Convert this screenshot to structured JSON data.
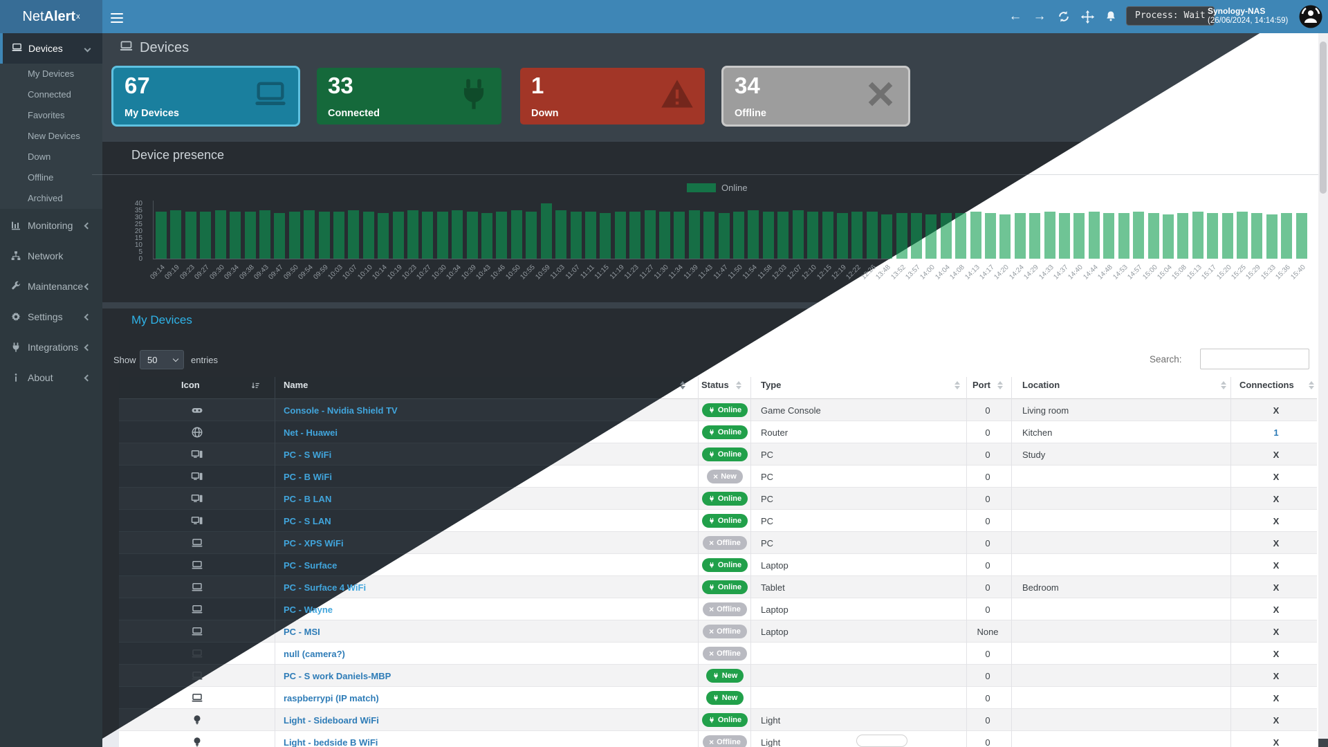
{
  "navbar": {
    "brand_prefix": "Net",
    "brand_bold": "Alert",
    "brand_sup": "x",
    "process_label": "Process: Wait",
    "server_name": "Synology-NAS",
    "server_datetime": "(26/06/2024, 14:14:59)"
  },
  "sidebar": {
    "devices_label": "Devices",
    "submenu": [
      "My Devices",
      "Connected",
      "Favorites",
      "New Devices",
      "Down",
      "Offline",
      "Archived"
    ],
    "sections": [
      {
        "label": "Monitoring",
        "icon": "chart",
        "chevron": true
      },
      {
        "label": "Network",
        "icon": "network",
        "chevron": false
      },
      {
        "label": "Maintenance",
        "icon": "wrench",
        "chevron": true
      },
      {
        "label": "Settings",
        "icon": "gear",
        "chevron": true
      },
      {
        "label": "Integrations",
        "icon": "plug",
        "chevron": true
      },
      {
        "label": "About",
        "icon": "info",
        "chevron": true
      }
    ]
  },
  "page": {
    "title": "Devices"
  },
  "stats": [
    {
      "value": "67",
      "label": "My Devices",
      "color": "#1a7f9e",
      "icon": "laptop",
      "ring": "#5fc1e0"
    },
    {
      "value": "33",
      "label": "Connected",
      "color": "#15693b",
      "icon": "plug",
      "ring": ""
    },
    {
      "value": "1",
      "label": "Down",
      "color": "#a23627",
      "icon": "warning",
      "ring": ""
    },
    {
      "value": "34",
      "label": "Offline",
      "color": "#9d9d9d",
      "icon": "x",
      "ring": "#c9c9c9"
    }
  ],
  "chart_data": {
    "type": "bar",
    "title": "Device presence",
    "legend": [
      "Online"
    ],
    "legend_position": "top-center",
    "ylim": [
      0,
      40
    ],
    "yticks": [
      40,
      35,
      30,
      25,
      20,
      15,
      10,
      5,
      0
    ],
    "grid": false,
    "bar_color_dark_theme": "#166e45",
    "bar_color_light_theme": "#6fc495",
    "categories": [
      "09:14",
      "09:19",
      "09:23",
      "09:27",
      "09:30",
      "09:34",
      "09:38",
      "09:43",
      "09:47",
      "09:50",
      "09:54",
      "09:59",
      "10:03",
      "10:07",
      "10:10",
      "10:14",
      "10:19",
      "10:23",
      "10:27",
      "10:30",
      "10:34",
      "10:39",
      "10:43",
      "10:46",
      "10:50",
      "10:55",
      "10:59",
      "11:03",
      "11:07",
      "11:11",
      "11:15",
      "11:19",
      "11:23",
      "11:27",
      "11:30",
      "11:34",
      "11:39",
      "11:43",
      "11:47",
      "11:50",
      "11:54",
      "11:58",
      "12:03",
      "12:07",
      "12:10",
      "12:15",
      "12:19",
      "12:22",
      "12:26",
      "13:48",
      "13:52",
      "13:57",
      "14:00",
      "14:04",
      "14:08",
      "14:13",
      "14:17",
      "14:20",
      "14:24",
      "14:29",
      "14:33",
      "14:37",
      "14:40",
      "14:44",
      "14:48",
      "14:53",
      "14:57",
      "15:00",
      "15:04",
      "15:08",
      "15:13",
      "15:17",
      "15:20",
      "15:25",
      "15:29",
      "15:33",
      "15:36",
      "15:40"
    ],
    "values": [
      34,
      35,
      34,
      34,
      35,
      34,
      34,
      35,
      33,
      34,
      35,
      34,
      34,
      35,
      34,
      33,
      34,
      35,
      34,
      34,
      35,
      34,
      33,
      34,
      35,
      34,
      40,
      35,
      34,
      34,
      33,
      34,
      34,
      35,
      34,
      34,
      35,
      34,
      33,
      34,
      35,
      34,
      34,
      35,
      34,
      34,
      33,
      34,
      34,
      32,
      33,
      33,
      32,
      33,
      33,
      34,
      33,
      32,
      33,
      33,
      34,
      33,
      33,
      34,
      33,
      33,
      34,
      33,
      32,
      33,
      34,
      33,
      33,
      34,
      33,
      32,
      33,
      33
    ]
  },
  "table": {
    "title": "My Devices",
    "show_label": "Show",
    "entries_label": "entries",
    "page_size": "50",
    "search_label": "Search:",
    "search_value": "",
    "columns": [
      "Icon",
      "Name",
      "Status",
      "Type",
      "Port",
      "Location",
      "Connections"
    ],
    "rows": [
      {
        "icon": "gamepad",
        "name": "Console - Nvidia Shield TV",
        "status": "Online",
        "status_variant": "online",
        "type": "Game Console",
        "port": "0",
        "location": "Living room",
        "connections": "X"
      },
      {
        "icon": "globe",
        "name": "Net - Huawei",
        "status": "Online",
        "status_variant": "online",
        "type": "Router",
        "port": "0",
        "location": "Kitchen",
        "connections": "1"
      },
      {
        "icon": "desktop",
        "name": "PC - S WiFi",
        "status": "Online",
        "status_variant": "online",
        "type": "PC",
        "port": "0",
        "location": "Study",
        "connections": "X"
      },
      {
        "icon": "desktop",
        "name": "PC - B WiFi",
        "status": "New",
        "status_variant": "new-gray",
        "type": "PC",
        "port": "0",
        "location": "",
        "connections": "X"
      },
      {
        "icon": "desktop",
        "name": "PC - B LAN",
        "status": "Online",
        "status_variant": "online",
        "type": "PC",
        "port": "0",
        "location": "",
        "connections": "X"
      },
      {
        "icon": "desktop",
        "name": "PC - S LAN",
        "status": "Online",
        "status_variant": "online",
        "type": "PC",
        "port": "0",
        "location": "",
        "connections": "X"
      },
      {
        "icon": "laptop",
        "name": "PC - XPS WiFi",
        "status": "Offline",
        "status_variant": "offline",
        "type": "PC",
        "port": "0",
        "location": "",
        "connections": "X"
      },
      {
        "icon": "laptop",
        "name": "PC - Surface",
        "status": "Online",
        "status_variant": "online",
        "type": "Laptop",
        "port": "0",
        "location": "",
        "connections": "X"
      },
      {
        "icon": "laptop",
        "name": "PC - Surface 4 WiFi",
        "status": "Online",
        "status_variant": "online",
        "type": "Tablet",
        "port": "0",
        "location": "Bedroom",
        "connections": "X"
      },
      {
        "icon": "laptop",
        "name": "PC - Wayne",
        "status": "Offline",
        "status_variant": "offline",
        "type": "Laptop",
        "port": "0",
        "location": "",
        "connections": "X"
      },
      {
        "icon": "laptop",
        "name": "PC - MSI",
        "status": "Offline",
        "status_variant": "offline",
        "type": "Laptop",
        "port": "None",
        "location": "",
        "connections": "X"
      },
      {
        "icon": "laptop",
        "name": "null (camera?)",
        "status": "Offline",
        "status_variant": "offline",
        "type": "",
        "port": "0",
        "location": "",
        "connections": "X"
      },
      {
        "icon": "laptop",
        "name": "PC - S work Daniels-MBP",
        "status": "New",
        "status_variant": "new-green",
        "type": "",
        "port": "0",
        "location": "",
        "connections": "X"
      },
      {
        "icon": "laptop",
        "name": "raspberrypi (IP match)",
        "status": "New",
        "status_variant": "new-green",
        "type": "",
        "port": "0",
        "location": "",
        "connections": "X"
      },
      {
        "icon": "bulb",
        "name": "Light - Sideboard WiFi",
        "status": "Online",
        "status_variant": "online",
        "type": "Light",
        "port": "0",
        "location": "",
        "connections": "X"
      },
      {
        "icon": "bulb",
        "name": "Light - bedside B WiFi",
        "status": "Offline",
        "status_variant": "offline",
        "type": "Light",
        "port": "0",
        "location": "",
        "connections": "X"
      }
    ]
  },
  "colors": {
    "navbar": "#3e86b6",
    "navbar_brand": "#376d96",
    "sidebar": "#2d383e",
    "card_bg_dark": "#272c31",
    "badge_green": "#21a04a",
    "badge_gray": "#b9bac1",
    "name_link_dark_side": "#41a5dc",
    "name_link_light_side": "#2e7cb7"
  }
}
